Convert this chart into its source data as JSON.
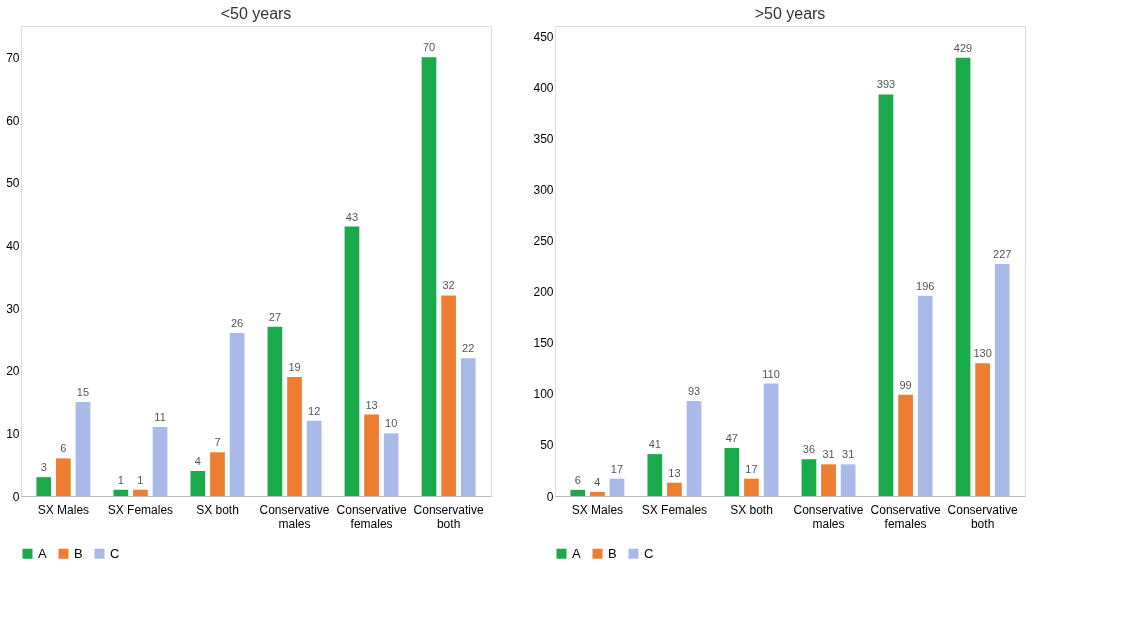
{
  "chart_data": [
    {
      "type": "bar",
      "title": "<50 years",
      "categories": [
        "SX Males",
        "SX Females",
        "SX both",
        "Conservative males",
        "Conservative females",
        "Conservative both"
      ],
      "ylim": [
        0,
        75
      ],
      "yticks": [
        0,
        10,
        20,
        30,
        40,
        50,
        60,
        70
      ],
      "grid": false,
      "legend": "bottom",
      "data_labels": true,
      "series": [
        {
          "name": "A",
          "color": "#1aaa4b",
          "values": [
            3,
            1,
            4,
            27,
            43,
            70
          ]
        },
        {
          "name": "B",
          "color": "#ed7d31",
          "values": [
            6,
            1,
            7,
            19,
            13,
            32
          ]
        },
        {
          "name": "C",
          "color": "#a9b9e8",
          "values": [
            15,
            11,
            26,
            12,
            10,
            22
          ]
        }
      ]
    },
    {
      "type": "bar",
      "title": ">50 years",
      "categories": [
        "SX Males",
        "SX Females",
        "SX both",
        "Conservative males",
        "Conservative females",
        "Conservative both"
      ],
      "ylim": [
        0,
        460
      ],
      "yticks": [
        0,
        50,
        100,
        150,
        200,
        250,
        300,
        350,
        400,
        450
      ],
      "grid": false,
      "legend": "bottom",
      "data_labels": true,
      "series": [
        {
          "name": "A",
          "color": "#1aaa4b",
          "values": [
            6,
            41,
            47,
            36,
            393,
            429
          ]
        },
        {
          "name": "B",
          "color": "#ed7d31",
          "values": [
            4,
            13,
            17,
            31,
            99,
            130
          ]
        },
        {
          "name": "C",
          "color": "#a9b9e8",
          "values": [
            17,
            93,
            110,
            31,
            196,
            227
          ]
        }
      ]
    }
  ]
}
